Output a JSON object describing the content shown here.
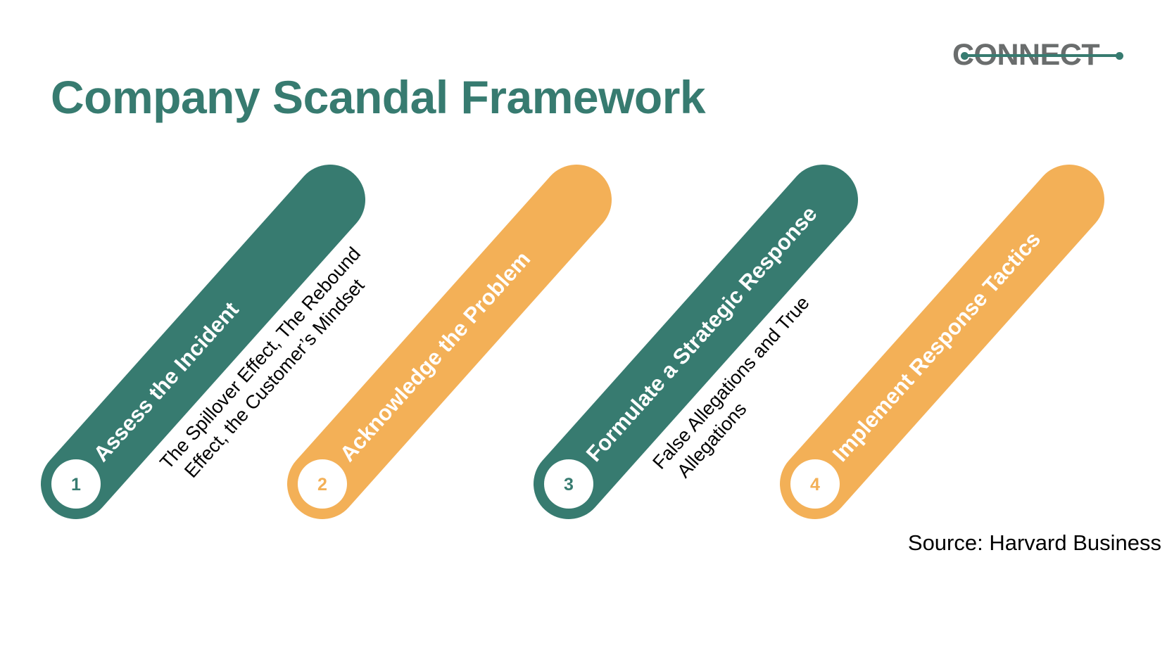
{
  "logo": {
    "text": "CONNECT"
  },
  "title": "Company Scandal Framework",
  "colors": {
    "teal": "#377b70",
    "orange": "#f3b057",
    "white": "#ffffff",
    "text": "#000000"
  },
  "steps": [
    {
      "number": "1",
      "label": "Assess the Incident",
      "color": "teal",
      "note_lines": [
        "The Spillover Effect, The Rebound",
        "Effect, the Customer’s Mindset"
      ]
    },
    {
      "number": "2",
      "label": "Acknowledge the Problem",
      "color": "orange",
      "note_lines": []
    },
    {
      "number": "3",
      "label": "Formulate a Strategic Response",
      "color": "teal",
      "note_lines": [
        "False Allegations and True",
        "Allegations"
      ]
    },
    {
      "number": "4",
      "label": "Implement Response Tactics",
      "color": "orange",
      "note_lines": []
    }
  ],
  "source": "Source: Harvard Business"
}
